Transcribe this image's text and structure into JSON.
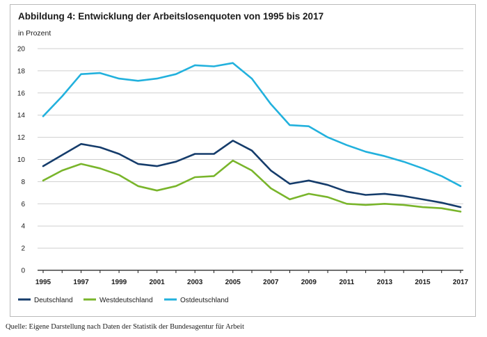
{
  "title": "Abbildung 4: Entwicklung der Arbeitslosenquoten von 1995 bis 2017",
  "unit": "in Prozent",
  "source": "Quelle: Eigene Darstellung nach Daten der Statistik der Bundesagentur für Arbeit",
  "chart_data": {
    "type": "line",
    "title": "Abbildung 4: Entwicklung der Arbeitslosenquoten von 1995 bis 2017",
    "ylabel": "in Prozent",
    "xlabel": "",
    "ylim": [
      0,
      20
    ],
    "yticks": [
      0,
      2,
      4,
      6,
      8,
      10,
      12,
      14,
      16,
      18,
      20
    ],
    "xlim": [
      1995,
      2017
    ],
    "xticks": [
      1995,
      1997,
      1999,
      2001,
      2003,
      2005,
      2007,
      2009,
      2011,
      2013,
      2015,
      2017
    ],
    "grid": "horizontal",
    "legend_position": "bottom-left",
    "x": [
      1995,
      1996,
      1997,
      1998,
      1999,
      2000,
      2001,
      2002,
      2003,
      2004,
      2005,
      2006,
      2007,
      2008,
      2009,
      2010,
      2011,
      2012,
      2013,
      2014,
      2015,
      2016,
      2017
    ],
    "series": [
      {
        "name": "Deutschland",
        "color": "#153c6b",
        "values": [
          9.4,
          10.4,
          11.4,
          11.1,
          10.5,
          9.6,
          9.4,
          9.8,
          10.5,
          10.5,
          11.7,
          10.8,
          9.0,
          7.8,
          8.1,
          7.7,
          7.1,
          6.8,
          6.9,
          6.7,
          6.4,
          6.1,
          5.7
        ]
      },
      {
        "name": "Westdeutschland",
        "color": "#79b52b",
        "values": [
          8.1,
          9.0,
          9.6,
          9.2,
          8.6,
          7.6,
          7.2,
          7.6,
          8.4,
          8.5,
          9.9,
          9.0,
          7.4,
          6.4,
          6.9,
          6.6,
          6.0,
          5.9,
          6.0,
          5.9,
          5.7,
          5.6,
          5.3
        ]
      },
      {
        "name": "Ostdeutschland",
        "color": "#22b1dd",
        "values": [
          13.9,
          15.7,
          17.7,
          17.8,
          17.3,
          17.1,
          17.3,
          17.7,
          18.5,
          18.4,
          18.7,
          17.3,
          15.0,
          13.1,
          13.0,
          12.0,
          11.3,
          10.7,
          10.3,
          9.8,
          9.2,
          8.5,
          7.6
        ]
      }
    ]
  }
}
